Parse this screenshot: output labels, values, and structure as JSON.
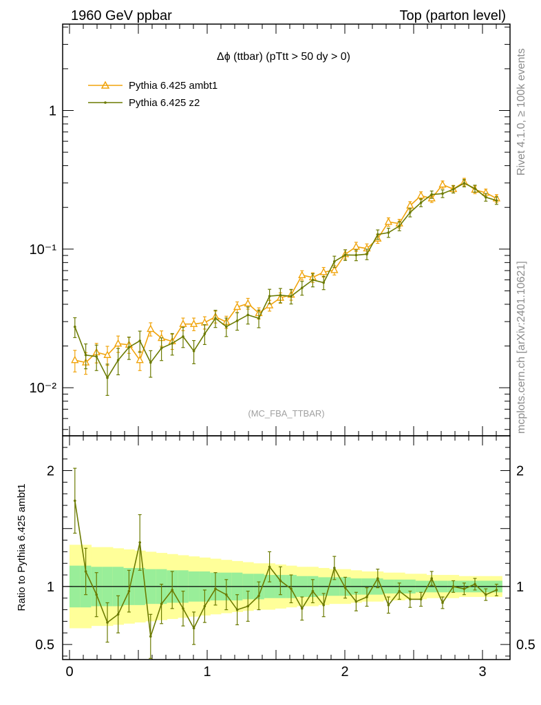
{
  "header": {
    "left": "1960 GeV ppbar",
    "right": "Top (parton level)"
  },
  "side": {
    "rivet": "Rivet 4.1.0, ≥ 100k events",
    "mcplots": "mcplots.cern.ch [arXiv:2401.10621]"
  },
  "colors": {
    "ambt1": "#f0a30a",
    "z2": "#6b7a00",
    "band_inner": "#99ee99",
    "band_outer": "#ffff99"
  },
  "chart_data": [
    {
      "type": "line",
      "title": "Δϕ (ttbar) (pTtt > 50 dy > 0)",
      "watermark": "(MC_FBA_TTBAR)",
      "yscale": "log",
      "xlim": [
        -0.05,
        3.2
      ],
      "ylim": [
        0.0045,
        4.2
      ],
      "yticks": [
        {
          "value": 1,
          "label": "1"
        },
        {
          "value": 0.1,
          "label": "10⁻¹"
        },
        {
          "value": 0.01,
          "label": "10⁻²"
        }
      ],
      "legend_position": "top-left",
      "x": [
        0.039,
        0.118,
        0.196,
        0.275,
        0.353,
        0.432,
        0.511,
        0.589,
        0.668,
        0.746,
        0.825,
        0.903,
        0.982,
        1.06,
        1.139,
        1.218,
        1.296,
        1.375,
        1.453,
        1.532,
        1.61,
        1.689,
        1.767,
        1.846,
        1.924,
        2.003,
        2.082,
        2.16,
        2.239,
        2.317,
        2.396,
        2.474,
        2.553,
        2.631,
        2.71,
        2.788,
        2.867,
        2.945,
        3.024,
        3.102
      ],
      "series": [
        {
          "name": "Pythia 6.425 ambt1",
          "marker": "triangle",
          "values": [
            0.0158,
            0.0152,
            0.018,
            0.0172,
            0.0208,
            0.0204,
            0.0158,
            0.0265,
            0.0228,
            0.0216,
            0.0288,
            0.0288,
            0.0295,
            0.0325,
            0.0298,
            0.0382,
            0.0405,
            0.0345,
            0.0392,
            0.0445,
            0.0468,
            0.0648,
            0.0625,
            0.0682,
            0.0705,
            0.0918,
            0.104,
            0.101,
            0.119,
            0.157,
            0.153,
            0.206,
            0.243,
            0.232,
            0.292,
            0.271,
            0.305,
            0.268,
            0.255,
            0.232
          ],
          "errors": [
            0.0028,
            0.0027,
            0.0029,
            0.0027,
            0.0028,
            0.0027,
            0.0025,
            0.0029,
            0.0029,
            0.0027,
            0.003,
            0.003,
            0.003,
            0.0032,
            0.003,
            0.0034,
            0.0036,
            0.0032,
            0.0035,
            0.0038,
            0.004,
            0.005,
            0.005,
            0.0055,
            0.0055,
            0.007,
            0.008,
            0.008,
            0.009,
            0.011,
            0.011,
            0.014,
            0.016,
            0.015,
            0.018,
            0.017,
            0.019,
            0.017,
            0.016,
            0.015
          ]
        },
        {
          "name": "Pythia 6.425 z2",
          "marker": "dot",
          "values": [
            0.0275,
            0.0172,
            0.0168,
            0.0118,
            0.0158,
            0.0196,
            0.0218,
            0.0152,
            0.0193,
            0.0209,
            0.0234,
            0.0184,
            0.0245,
            0.0317,
            0.0276,
            0.0304,
            0.0335,
            0.0317,
            0.0458,
            0.0465,
            0.0457,
            0.0525,
            0.0599,
            0.0573,
            0.0814,
            0.0908,
            0.0905,
            0.0919,
            0.1275,
            0.1315,
            0.1467,
            0.1838,
            0.2163,
            0.2475,
            0.2514,
            0.2701,
            0.2992,
            0.2731,
            0.2367,
            0.2243
          ],
          "errors": [
            0.0045,
            0.0035,
            0.0035,
            0.003,
            0.0034,
            0.0036,
            0.0038,
            0.0033,
            0.0036,
            0.0037,
            0.0039,
            0.0035,
            0.004,
            0.0045,
            0.0042,
            0.0044,
            0.0047,
            0.0046,
            0.0055,
            0.0055,
            0.0055,
            0.006,
            0.0065,
            0.0063,
            0.0075,
            0.008,
            0.008,
            0.008,
            0.01,
            0.01,
            0.011,
            0.013,
            0.014,
            0.015,
            0.016,
            0.016,
            0.018,
            0.016,
            0.015,
            0.014
          ]
        }
      ]
    },
    {
      "type": "line",
      "ylabel": "Ratio to Pythia 6.425 ambt1",
      "xlim": [
        -0.05,
        3.2
      ],
      "ylim": [
        0.37,
        2.3
      ],
      "xticks": [
        0,
        1,
        2,
        3
      ],
      "yticks": [
        {
          "value": 2,
          "label": "2"
        },
        {
          "value": 1,
          "label": "1"
        },
        {
          "value": 0.5,
          "label": "0.5"
        }
      ],
      "reference": 1,
      "band_inner": [
        0.18,
        0.18,
        0.17,
        0.17,
        0.17,
        0.16,
        0.16,
        0.15,
        0.15,
        0.14,
        0.14,
        0.13,
        0.13,
        0.12,
        0.12,
        0.12,
        0.11,
        0.11,
        0.1,
        0.1,
        0.1,
        0.09,
        0.09,
        0.08,
        0.08,
        0.08,
        0.07,
        0.07,
        0.07,
        0.06,
        0.06,
        0.06,
        0.05,
        0.05,
        0.05,
        0.05,
        0.05,
        0.05,
        0.05,
        0.05
      ],
      "band_outer": [
        0.36,
        0.36,
        0.34,
        0.34,
        0.33,
        0.32,
        0.31,
        0.3,
        0.29,
        0.28,
        0.27,
        0.26,
        0.25,
        0.24,
        0.23,
        0.22,
        0.21,
        0.2,
        0.2,
        0.19,
        0.18,
        0.17,
        0.17,
        0.16,
        0.15,
        0.15,
        0.14,
        0.13,
        0.13,
        0.12,
        0.12,
        0.11,
        0.11,
        0.1,
        0.1,
        0.1,
        0.09,
        0.09,
        0.09,
        0.09
      ],
      "series": [
        {
          "name": "Pythia 6.425 z2",
          "values": [
            1.74,
            1.13,
            0.93,
            0.69,
            0.76,
            0.96,
            1.38,
            0.57,
            0.85,
            0.97,
            0.81,
            0.64,
            0.83,
            0.98,
            0.93,
            0.8,
            0.83,
            0.92,
            1.17,
            1.05,
            0.98,
            0.81,
            0.96,
            0.84,
            1.16,
            0.99,
            0.87,
            0.91,
            1.07,
            0.84,
            0.96,
            0.89,
            0.89,
            1.07,
            0.86,
            1.0,
            0.98,
            1.02,
            0.93,
            0.97
          ],
          "errors": [
            0.28,
            0.2,
            0.19,
            0.17,
            0.16,
            0.18,
            0.24,
            0.19,
            0.17,
            0.16,
            0.15,
            0.14,
            0.14,
            0.14,
            0.13,
            0.13,
            0.13,
            0.12,
            0.13,
            0.12,
            0.12,
            0.1,
            0.1,
            0.1,
            0.1,
            0.09,
            0.08,
            0.08,
            0.08,
            0.07,
            0.07,
            0.07,
            0.06,
            0.06,
            0.05,
            0.05,
            0.05,
            0.05,
            0.05,
            0.05
          ]
        }
      ]
    }
  ]
}
